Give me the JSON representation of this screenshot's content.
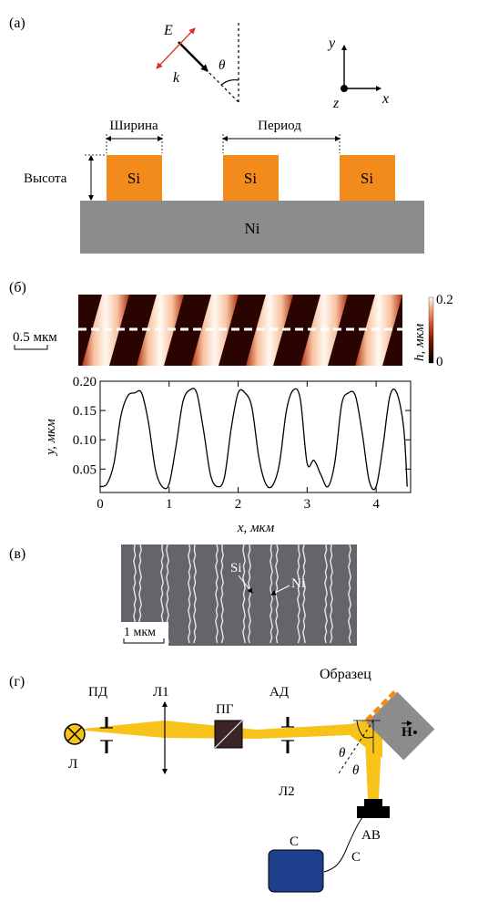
{
  "panel_a": {
    "label": "(а)",
    "field_e": "E",
    "wavevector_k": "k",
    "angle_theta": "θ",
    "axis_y": "y",
    "axis_z": "z",
    "axis_x": "x",
    "width_label": "Ширина",
    "period_label": "Период",
    "height_label": "Высота",
    "ridges": [
      "Si",
      "Si",
      "Si"
    ],
    "substrate": "Ni",
    "colors": {
      "si": "#f28a1c",
      "ni": "#8c8c8c",
      "e_arrow": "#d9322a"
    }
  },
  "panel_b": {
    "label": "(б)",
    "scale_bar": "0.5 мкм",
    "colorbar_label": "h, мкм",
    "colorbar_max": "0.2",
    "colorbar_min": "0",
    "ylabel": "y, мкм",
    "xlabel": "x, мкм"
  },
  "chart_data": {
    "type": "line",
    "xlabel": "x, мкм",
    "ylabel": "y, мкм",
    "xlim": [
      0,
      4.5
    ],
    "ylim": [
      0.01,
      0.2
    ],
    "xticks": [
      0,
      1,
      2,
      3,
      4
    ],
    "yticks": [
      0.05,
      0.1,
      0.15,
      0.2
    ],
    "grid": false,
    "series": [
      {
        "x": [
          0.0,
          0.1,
          0.2,
          0.3,
          0.4,
          0.5,
          0.6,
          0.7,
          0.8,
          0.9,
          1.0,
          1.1,
          1.2,
          1.3,
          1.4,
          1.5,
          1.6,
          1.7,
          1.8,
          1.9,
          2.0,
          2.1,
          2.2,
          2.3,
          2.4,
          2.5,
          2.6,
          2.7,
          2.8,
          2.9,
          3.0,
          3.1,
          3.2,
          3.3,
          3.4,
          3.5,
          3.6,
          3.7,
          3.8,
          3.9,
          4.0,
          4.1,
          4.2,
          4.3,
          4.4,
          4.45
        ],
        "y": [
          0.02,
          0.025,
          0.06,
          0.14,
          0.175,
          0.18,
          0.18,
          0.13,
          0.05,
          0.02,
          0.025,
          0.09,
          0.165,
          0.185,
          0.18,
          0.115,
          0.04,
          0.02,
          0.035,
          0.12,
          0.18,
          0.18,
          0.155,
          0.07,
          0.025,
          0.022,
          0.06,
          0.15,
          0.185,
          0.17,
          0.06,
          0.065,
          0.04,
          0.02,
          0.06,
          0.16,
          0.18,
          0.175,
          0.11,
          0.03,
          0.02,
          0.09,
          0.175,
          0.18,
          0.12,
          0.02
        ]
      }
    ]
  },
  "panel_c": {
    "label": "(в)",
    "si_label": "Si",
    "ni_label": "Ni",
    "scale_bar": "1 мкм"
  },
  "panel_d": {
    "label": "(г)",
    "pd": "ПД",
    "l1": "Л1",
    "pg": "ПГ",
    "ad": "АД",
    "sample": "Образец",
    "source": "Л",
    "l2": "Л2",
    "theta1": "θ",
    "theta2": "θ",
    "ab": "АВ",
    "c_box": "С",
    "c_cable": "С",
    "field_h": "H",
    "colors": {
      "beam": "#f7c21a",
      "detector": "#1d3f8c"
    }
  }
}
